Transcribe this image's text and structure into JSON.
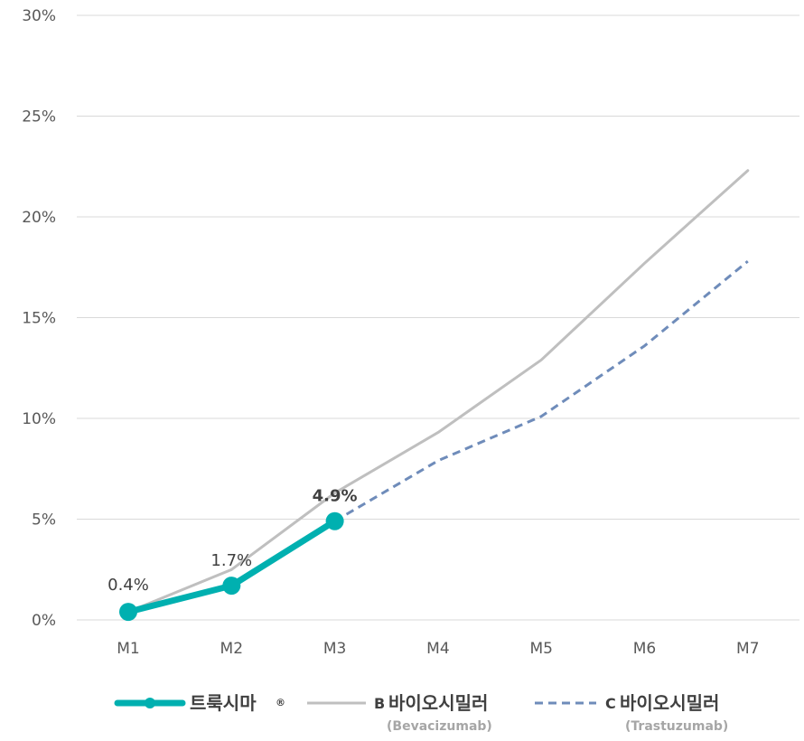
{
  "chart_data": {
    "type": "line",
    "categories": [
      "M1",
      "M2",
      "M3",
      "M4",
      "M5",
      "M6",
      "M7"
    ],
    "ylim": [
      0,
      30
    ],
    "yticks": [
      0,
      5,
      10,
      15,
      20,
      25,
      30
    ],
    "ytick_labels": [
      "0%",
      "5%",
      "10%",
      "15%",
      "20%",
      "25%",
      "30%"
    ],
    "grid": true,
    "legend_position": "bottom",
    "series": [
      {
        "name": "트룩시마",
        "name_mark": "®",
        "color": "#00b0b0",
        "style": "solid-thick-markers",
        "values": [
          0.4,
          1.7,
          4.9,
          null,
          null,
          null,
          null
        ],
        "data_labels": [
          "0.4%",
          "1.7%",
          "4.9%",
          null,
          null,
          null,
          null
        ]
      },
      {
        "name": "바이오시밀러",
        "name_prefix": "B",
        "name_sub": "(Bevacizumab)",
        "color": "#bfbfbf",
        "style": "solid",
        "values": [
          0.4,
          2.5,
          6.3,
          9.3,
          12.9,
          17.7,
          22.3
        ]
      },
      {
        "name": "바이오시밀러",
        "name_prefix": "C",
        "name_sub": "(Trastuzumab)",
        "color": "#6f8cba",
        "style": "dashed",
        "values": [
          null,
          null,
          4.9,
          7.9,
          10.1,
          13.6,
          17.8
        ]
      }
    ]
  }
}
